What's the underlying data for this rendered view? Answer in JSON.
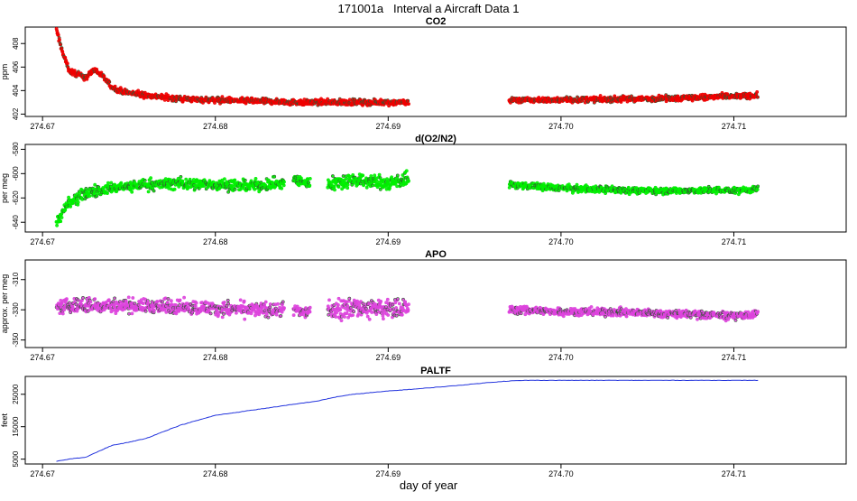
{
  "page_title": "171001a   Interval a Aircraft Data 1",
  "xlabel": "day of year",
  "chart_data": [
    {
      "type": "scatter",
      "title": "CO2",
      "ylabel": "ppm",
      "color": "#ee0000",
      "xlim": [
        274.669,
        274.7165
      ],
      "ylim": [
        401.8,
        409.4
      ],
      "xticks": [
        274.67,
        274.68,
        274.69,
        274.7,
        274.71
      ],
      "xtick_labels": [
        "274.67",
        "274.68",
        "274.69",
        "274.70",
        "274.71"
      ],
      "yticks": [
        402,
        404,
        406,
        408
      ],
      "ytick_labels": [
        "402",
        "404",
        "406",
        "408"
      ],
      "segments": [
        {
          "x": [
            274.6708,
            274.6712,
            274.6716,
            274.672,
            274.6725,
            274.673,
            274.6735,
            274.674,
            274.6745,
            274.675,
            274.676,
            274.678,
            274.68,
            274.685,
            274.69,
            274.6912
          ],
          "baseline": [
            409.2,
            407.0,
            405.6,
            405.4,
            405.1,
            405.8,
            405.2,
            404.3,
            404.0,
            403.8,
            403.6,
            403.3,
            403.2,
            403.0,
            403.0,
            403.0
          ],
          "noise": 0.35
        },
        {
          "x": [
            274.697,
            274.699,
            274.7,
            274.705,
            274.71,
            274.7114
          ],
          "baseline": [
            403.2,
            403.2,
            403.2,
            403.3,
            403.5,
            403.6
          ],
          "noise": 0.35
        }
      ]
    },
    {
      "type": "scatter",
      "title": "d(O2/N2)",
      "ylabel": "per meg",
      "color": "#00ee00",
      "xlim": [
        274.669,
        274.7165
      ],
      "ylim": [
        -648,
        -576
      ],
      "xticks": [
        274.67,
        274.68,
        274.69,
        274.7,
        274.71
      ],
      "xtick_labels": [
        "274.67",
        "274.68",
        "274.69",
        "274.70",
        "274.71"
      ],
      "yticks": [
        -640,
        -620,
        -600,
        -580
      ],
      "ytick_labels": [
        "-640",
        "-620",
        "-600",
        "-580"
      ],
      "segments": [
        {
          "x": [
            274.6708,
            274.6715,
            274.6725,
            274.674,
            274.676,
            274.678,
            274.68,
            274.682,
            274.684
          ],
          "baseline": [
            -640,
            -625,
            -616,
            -612,
            -609,
            -608,
            -609,
            -610,
            -608
          ],
          "noise": 7
        },
        {
          "x": [
            274.6845,
            274.6855
          ],
          "baseline": [
            -605,
            -608
          ],
          "noise": 6
        },
        {
          "x": [
            274.6865,
            274.688,
            274.69,
            274.6912
          ],
          "baseline": [
            -608,
            -605,
            -608,
            -604
          ],
          "noise": 9
        },
        {
          "x": [
            274.697,
            274.7,
            274.705,
            274.71,
            274.7114
          ],
          "baseline": [
            -609,
            -612,
            -614,
            -614,
            -613
          ],
          "noise": 4
        }
      ]
    },
    {
      "type": "scatter",
      "title": "APO",
      "ylabel": "approx. per meg",
      "color": "#dd44dd",
      "xlim": [
        274.669,
        274.7165
      ],
      "ylim": [
        -355,
        -297
      ],
      "xticks": [
        274.67,
        274.68,
        274.69,
        274.7,
        274.71
      ],
      "xtick_labels": [
        "274.67",
        "274.68",
        "274.69",
        "274.70",
        "274.71"
      ],
      "yticks": [
        -350,
        -330,
        -310
      ],
      "ytick_labels": [
        "-350",
        "-330",
        "-310"
      ],
      "segments": [
        {
          "x": [
            274.6708,
            274.674,
            274.678,
            274.682,
            274.684
          ],
          "baseline": [
            -328,
            -327,
            -328,
            -330,
            -330
          ],
          "noise": 7
        },
        {
          "x": [
            274.6845,
            274.6855
          ],
          "baseline": [
            -330,
            -332
          ],
          "noise": 6
        },
        {
          "x": [
            274.6865,
            274.688,
            274.69,
            274.6912
          ],
          "baseline": [
            -330,
            -328,
            -330,
            -328
          ],
          "noise": 10
        },
        {
          "x": [
            274.697,
            274.7,
            274.705,
            274.71,
            274.7114
          ],
          "baseline": [
            -330,
            -331,
            -332,
            -334,
            -333
          ],
          "noise": 4
        }
      ]
    },
    {
      "type": "line",
      "title": "PALTF",
      "ylabel": "feet",
      "color": "#2233dd",
      "xlim": [
        274.669,
        274.7165
      ],
      "ylim": [
        3500,
        30500
      ],
      "xticks": [
        274.67,
        274.68,
        274.69,
        274.7,
        274.71
      ],
      "xtick_labels": [
        "274.67",
        "274.68",
        "274.69",
        "274.70",
        "274.71"
      ],
      "yticks": [
        5000,
        15000,
        25000
      ],
      "ytick_labels": [
        "5000",
        "15000",
        "25000"
      ],
      "series": [
        {
          "name": "PALTF",
          "x": [
            274.6708,
            274.6715,
            274.672,
            274.6725,
            274.673,
            274.6735,
            274.674,
            274.675,
            274.676,
            274.677,
            274.678,
            274.679,
            274.68,
            274.682,
            274.684,
            274.686,
            274.687,
            274.688,
            274.69,
            274.692,
            274.694,
            274.696,
            274.697,
            274.698,
            274.7,
            274.705,
            274.71,
            274.7114
          ],
          "y": [
            4300,
            5000,
            5300,
            5600,
            6800,
            8000,
            9200,
            10200,
            11400,
            13500,
            15500,
            17000,
            18500,
            20000,
            21500,
            23000,
            24200,
            25000,
            26000,
            26800,
            27700,
            28700,
            29100,
            29300,
            29300,
            29300,
            29300,
            29300
          ]
        }
      ]
    }
  ]
}
